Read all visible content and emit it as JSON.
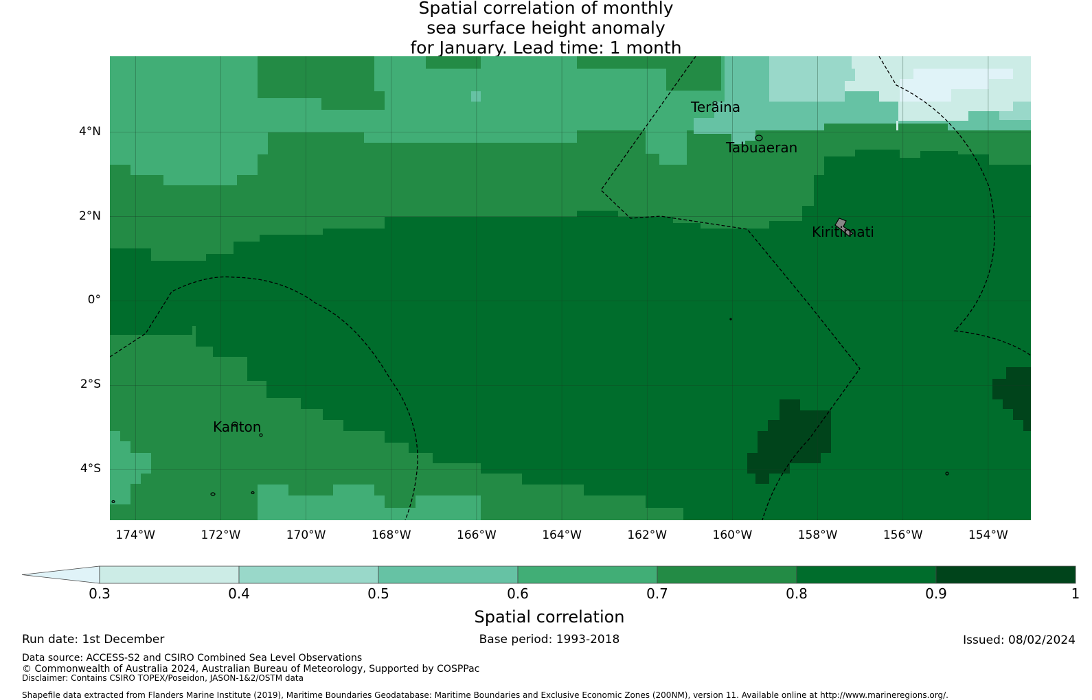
{
  "title": {
    "line1": "Spatial correlation of monthly",
    "line2": "sea surface height anomaly",
    "line3": "for January. Lead time: 1 month"
  },
  "map": {
    "lon_range": [
      -174.6,
      -153.0
    ],
    "lat_range": [
      -5.2,
      5.8
    ],
    "x_ticks": [
      "174°W",
      "172°W",
      "170°W",
      "168°W",
      "166°W",
      "164°W",
      "162°W",
      "160°W",
      "158°W",
      "156°W",
      "154°W"
    ],
    "y_ticks": [
      "4°N",
      "2°N",
      "0°",
      "2°S",
      "4°S"
    ],
    "islands": [
      "Teraina",
      "Tabuaeran",
      "Kiritimati",
      "Kanton"
    ]
  },
  "colorbar": {
    "title": "Spatial correlation",
    "ticks": [
      "0.3",
      "0.4",
      "0.5",
      "0.6",
      "0.7",
      "0.8",
      "0.9",
      "1"
    ],
    "colors": [
      "#e0f3f8",
      "#ccece6",
      "#99d8c9",
      "#66c2a4",
      "#41ae76",
      "#238b45",
      "#006d2c",
      "#00441b"
    ],
    "extend": "min"
  },
  "footer": {
    "run_date": "Run date: 1st December",
    "base_period": "Base period: 1993-2018",
    "issued": "Issued: 08/02/2024",
    "data_source": "Data source: ACCESS-S2 and CSIRO Combined Sea Level Observations",
    "copyright": "© Commonwealth of Australia 2024, Australian Bureau of Meteorology, Supported by COSPPac",
    "disclaimer": "Disclaimer: Contains CSIRO TOPEX/Poseidon, JASON-1&2/OSTM data",
    "shapefile": "Shapefile data extracted from Flanders Marine Institute (2019), Maritime Boundaries Geodatabase: Maritime Boundaries and Exclusive Economic Zones (200NM), version 11. Available online at http://www.marineregions.org/."
  }
}
